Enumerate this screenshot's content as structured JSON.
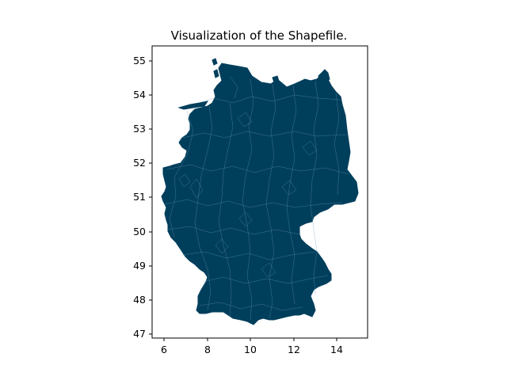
{
  "figure": {
    "title": "Visualization of the Shapefile."
  },
  "map": {
    "fill_color": "#003f5c",
    "border_color": "#6f98b4",
    "x_ticks": [
      "6",
      "8",
      "10",
      "12",
      "14"
    ],
    "y_ticks": [
      "47",
      "48",
      "49",
      "50",
      "51",
      "52",
      "53",
      "54",
      "55"
    ],
    "x_range": [
      5.5,
      15.5
    ],
    "y_range": [
      46.9,
      55.3
    ]
  }
}
